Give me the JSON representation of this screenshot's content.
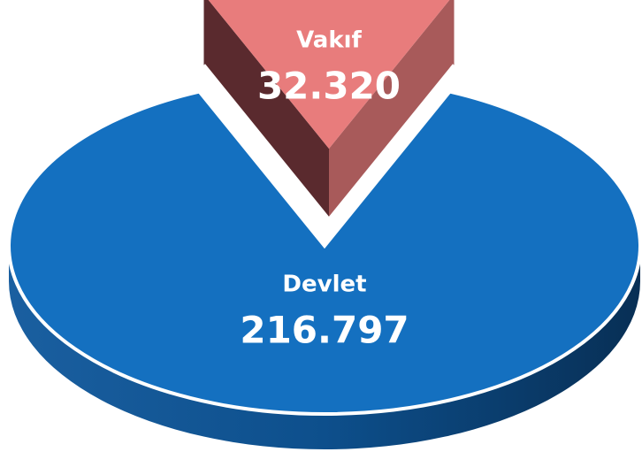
{
  "chart_data": {
    "type": "pie",
    "categories": [
      "Devlet",
      "Vakıf"
    ],
    "values": [
      216797,
      32320
    ],
    "value_labels": [
      "216.797",
      "32.320"
    ],
    "colors": [
      "#1470c0",
      "#e87c7c"
    ]
  }
}
